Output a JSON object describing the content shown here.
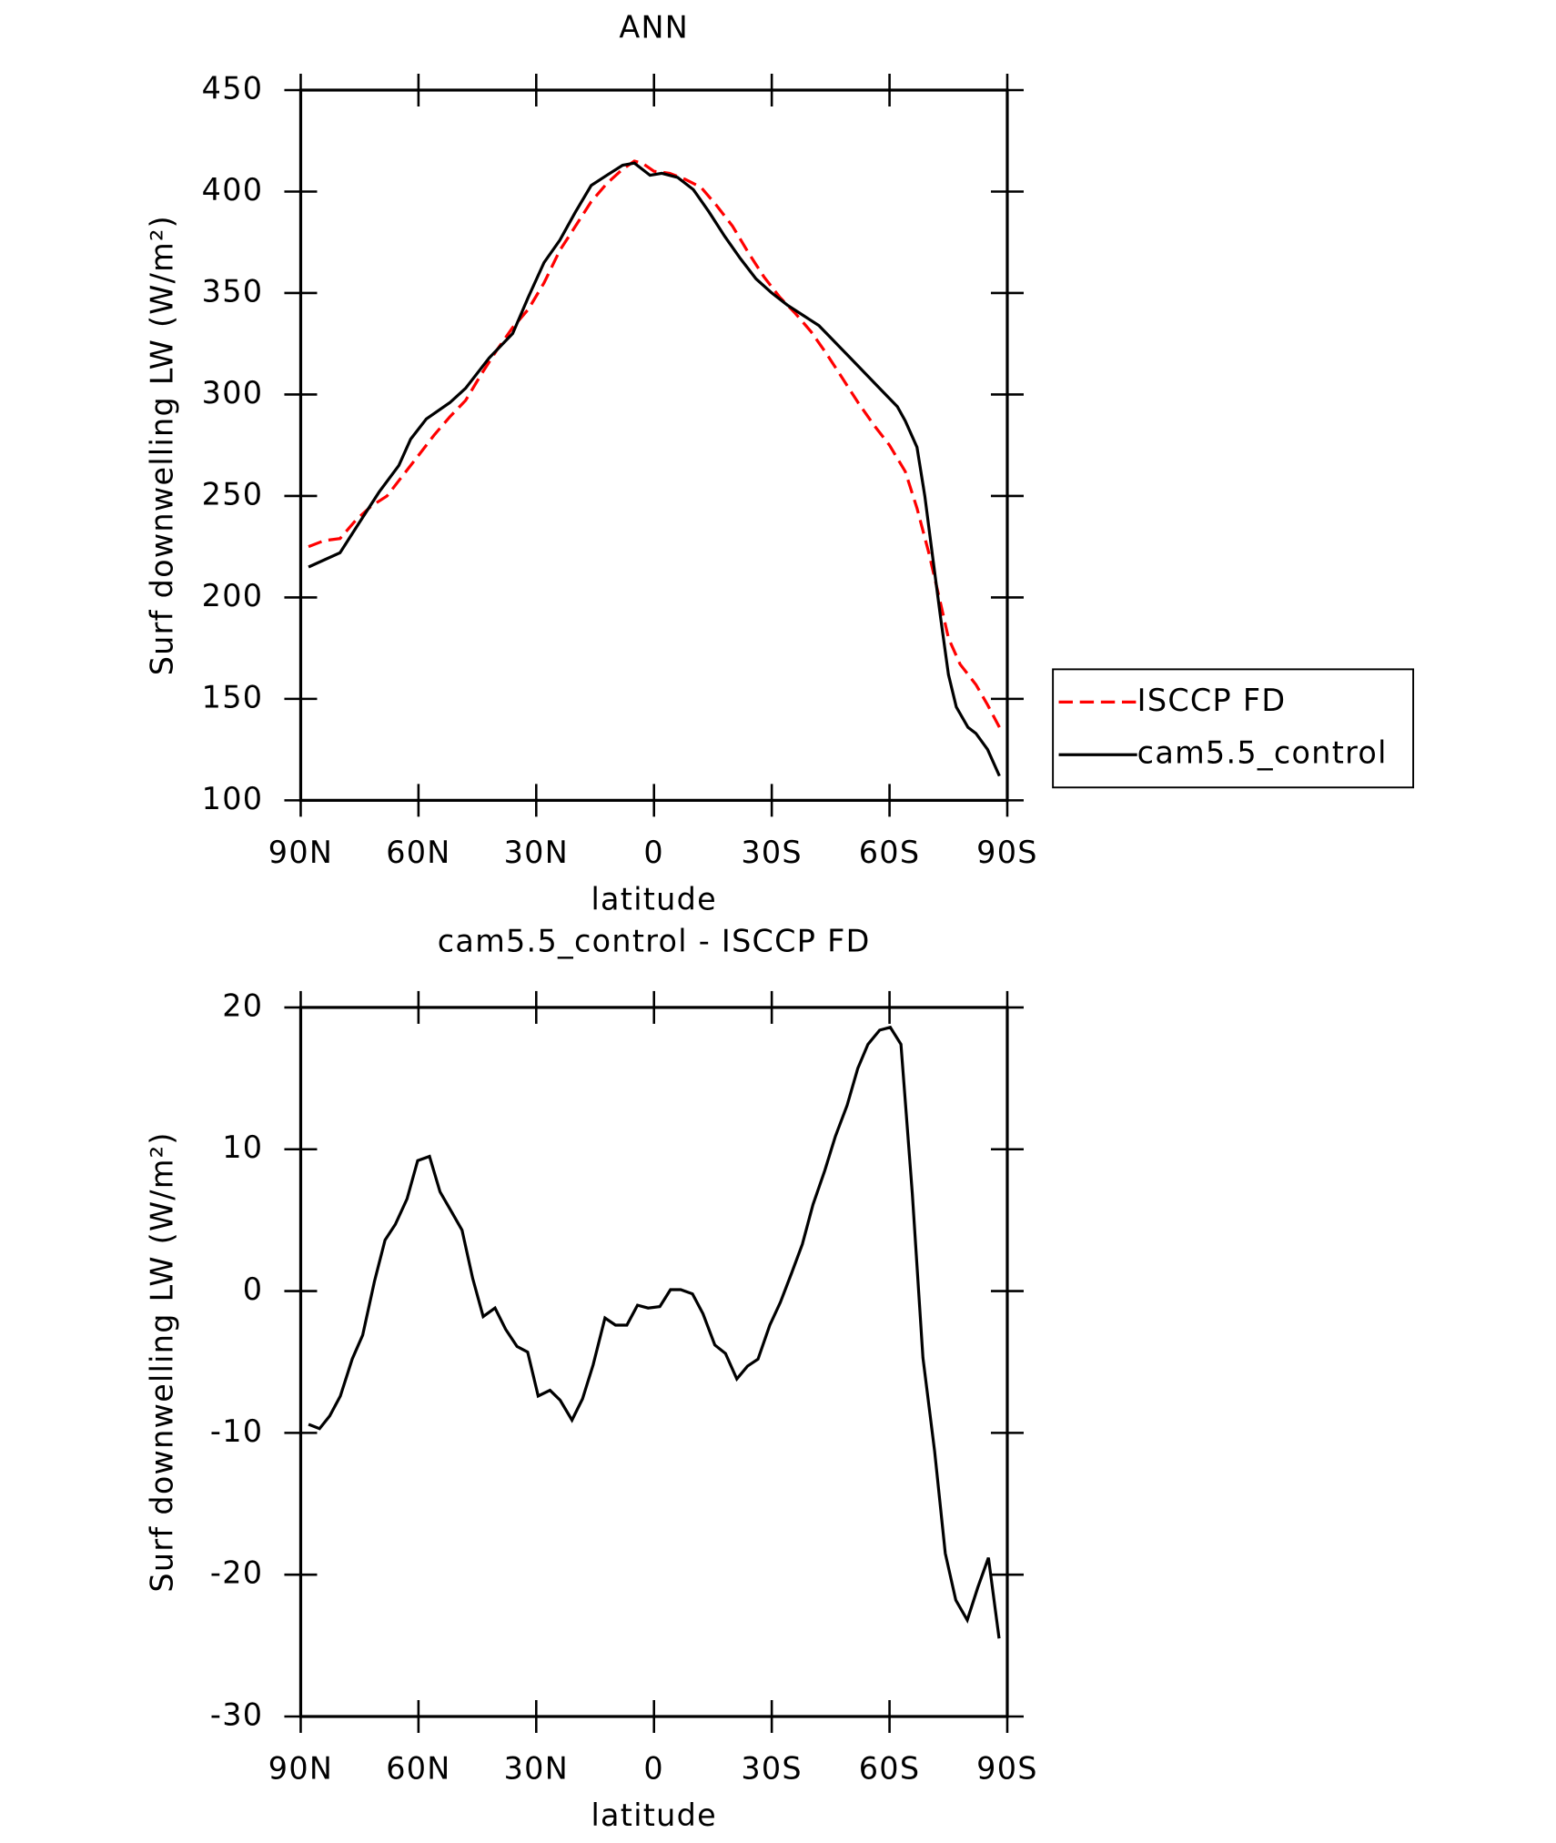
{
  "chart_data": [
    {
      "type": "line",
      "title": "ANN",
      "x_label": "latitude",
      "y_label": "Surf downwelling LW (W/m²)",
      "xlim": [
        90,
        -90
      ],
      "xticks": [
        {
          "value": 90,
          "label": "90N"
        },
        {
          "value": 60,
          "label": "60N"
        },
        {
          "value": 30,
          "label": "30N"
        },
        0,
        {
          "value": -30,
          "label": "30S"
        },
        {
          "value": -60,
          "label": "60S"
        },
        {
          "value": -90,
          "label": "90S"
        }
      ],
      "ylim": [
        100,
        450
      ],
      "yticks": [
        100,
        150,
        200,
        250,
        300,
        350,
        400,
        450
      ],
      "legend": "right",
      "series": [
        {
          "name": "ISCCP FD",
          "color": "#ff0000",
          "line_style": "dashed",
          "x": [
            88,
            84,
            80,
            76,
            72,
            68,
            64,
            60,
            56,
            52,
            48,
            44,
            40,
            36,
            32,
            28,
            24,
            20,
            16,
            12,
            8,
            5,
            3,
            0,
            -4,
            -8,
            -12,
            -16,
            -20,
            -24,
            -28,
            -32,
            -36,
            -40,
            -44,
            -48,
            -52,
            -56,
            -60,
            -64,
            -67,
            -70,
            -73,
            -75,
            -78,
            -82,
            -85,
            -88
          ],
          "values": [
            225,
            228,
            229,
            238,
            245,
            250,
            260,
            270,
            280,
            289,
            297,
            310,
            322,
            333,
            342,
            355,
            371,
            383,
            395,
            404,
            411,
            415,
            414,
            410,
            409,
            406,
            402,
            393,
            383,
            370,
            358,
            348,
            340,
            331,
            320,
            308,
            296,
            285,
            275,
            262,
            244,
            222,
            197,
            180,
            167,
            157,
            147,
            136
          ]
        },
        {
          "name": "cam5.5_control",
          "color": "#000000",
          "line_style": "solid",
          "x": [
            88,
            80,
            75,
            70,
            65,
            62,
            58,
            52,
            48,
            42,
            36,
            32,
            28,
            24,
            20,
            16,
            12,
            8,
            5,
            3,
            1,
            -2,
            -6,
            -10,
            -14,
            -18,
            -22,
            -26,
            -30,
            -34,
            -38,
            -42,
            -46,
            -50,
            -54,
            -58,
            -62,
            -64,
            -67,
            -69,
            -71,
            -73,
            -75,
            -77,
            -80,
            -82,
            -85,
            -88
          ],
          "values": [
            215,
            222,
            237,
            252,
            265,
            278,
            288,
            296,
            303,
            318,
            330,
            348,
            365,
            376,
            390,
            403,
            408,
            413,
            414,
            411,
            408,
            409,
            407,
            401,
            390,
            378,
            367,
            357,
            350,
            344,
            339,
            334,
            326,
            318,
            310,
            302,
            294,
            287,
            274,
            250,
            220,
            190,
            162,
            146,
            136,
            133,
            125,
            112
          ]
        }
      ]
    },
    {
      "type": "line",
      "title": "cam5.5_control - ISCCP FD",
      "x_label": "latitude",
      "y_label": "Surf downwelling LW (W/m²)",
      "xlim": [
        90,
        -90
      ],
      "xticks": [
        {
          "value": 90,
          "label": "90N"
        },
        {
          "value": 60,
          "label": "60N"
        },
        {
          "value": 30,
          "label": "30N"
        },
        0,
        {
          "value": -30,
          "label": "30S"
        },
        {
          "value": -60,
          "label": "60S"
        },
        {
          "value": -90,
          "label": "90S"
        }
      ],
      "ylim": [
        -30,
        20
      ],
      "yticks": [
        -30,
        -20,
        -10,
        0,
        10,
        20
      ],
      "series": [
        {
          "color": "#000000",
          "line_style": "solid",
          "x": [
            88,
            85.2,
            82.6,
            79.9,
            76.9,
            74.2,
            71.2,
            68.5,
            65.9,
            62.9,
            60.2,
            57.2,
            54.5,
            51.6,
            48.9,
            46.2,
            43.5,
            40.5,
            37.8,
            34.9,
            32.2,
            29.5,
            26.5,
            23.9,
            20.9,
            18.2,
            15.5,
            12.5,
            9.8,
            6.9,
            4.2,
            1.5,
            -1.5,
            -4.2,
            -6.8,
            -9.8,
            -12.5,
            -15.5,
            -18.2,
            -21.1,
            -23.8,
            -26.5,
            -29.5,
            -32.2,
            -35.1,
            -37.8,
            -40.5,
            -43.5,
            -46.2,
            -49.2,
            -51.9,
            -54.5,
            -57.5,
            -60.2,
            -62.9,
            -65.8,
            -68.5,
            -71.5,
            -74.2,
            -76.9,
            -79.8,
            -82.5,
            -85.2,
            -87.9
          ],
          "values": [
            -9.4,
            -9.7,
            -8.8,
            -7.4,
            -4.8,
            -3.1,
            0.7,
            3.6,
            4.7,
            6.5,
            9.2,
            9.5,
            7.0,
            5.6,
            4.3,
            0.9,
            -1.8,
            -1.2,
            -2.7,
            -3.9,
            -4.3,
            -7.4,
            -7.0,
            -7.7,
            -9.1,
            -7.6,
            -5.2,
            -1.9,
            -2.4,
            -2.4,
            -1.0,
            -1.2,
            -1.1,
            0.1,
            0.1,
            -0.2,
            -1.6,
            -3.8,
            -4.4,
            -6.2,
            -5.3,
            -4.8,
            -2.4,
            -0.8,
            1.3,
            3.3,
            6.1,
            8.5,
            10.9,
            13.1,
            15.7,
            17.4,
            18.4,
            18.6,
            17.4,
            6.9,
            -4.7,
            -11.3,
            -18.5,
            -21.8,
            -23.2,
            -20.9,
            -18.8,
            -24.5
          ]
        }
      ]
    }
  ]
}
